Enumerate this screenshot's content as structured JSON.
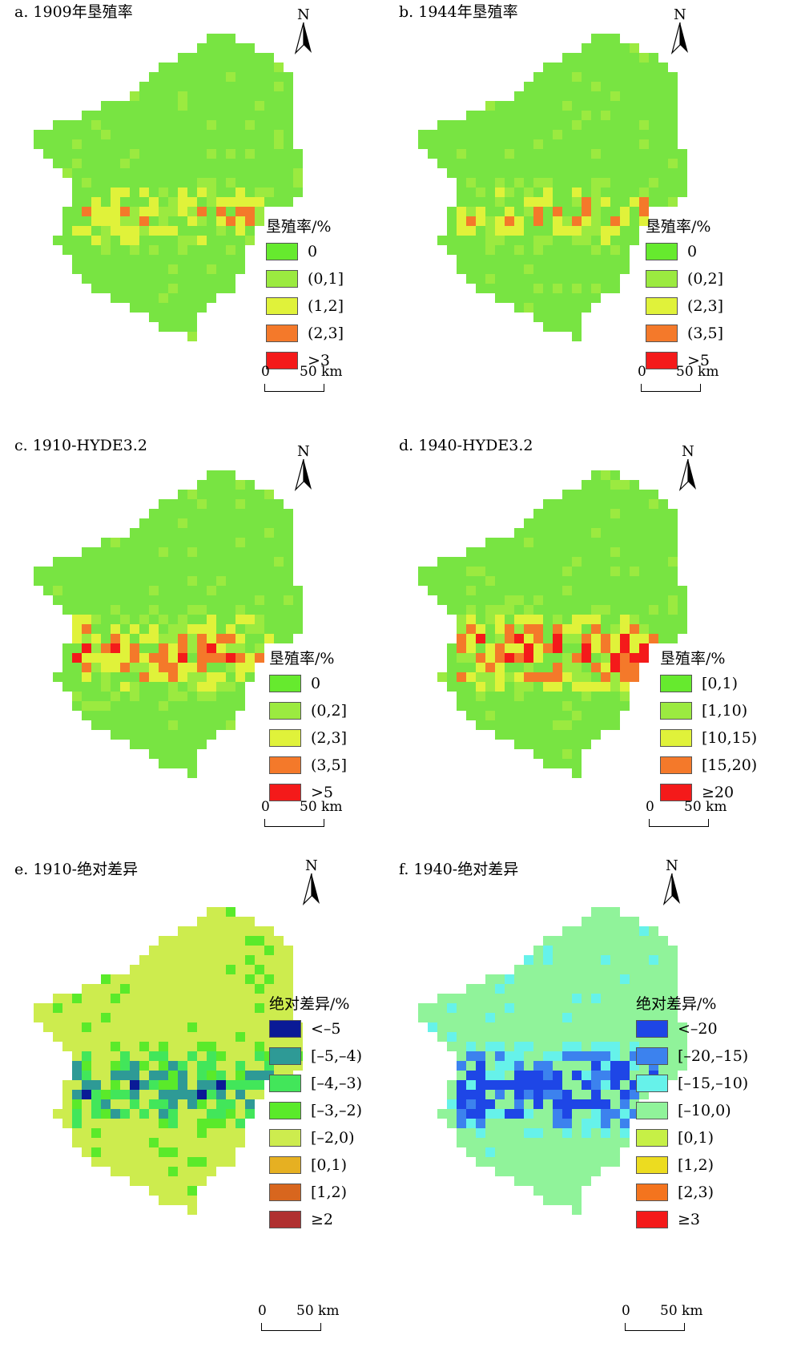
{
  "scale": {
    "zero": "0",
    "distance": "50 km"
  },
  "north_label": "N",
  "panels": [
    {
      "id": "a",
      "title": "a. 1909年垦殖率",
      "legend_title": "垦殖率/%",
      "fill": "#78e442",
      "classes": [
        {
          "label": "0",
          "color": "#66ea2e"
        },
        {
          "label": "(0,1]",
          "color": "#9bea40"
        },
        {
          "label": "(1,2]",
          "color": "#e0f23a"
        },
        {
          "label": "(2,3]",
          "color": "#f4792a"
        },
        {
          "label": ">3",
          "color": "#f41a1a"
        }
      ],
      "hot": {
        "level": 1,
        "colors": [
          "#9bea40",
          "#e0f23a",
          "#f4792a",
          "#f41a1a"
        ]
      }
    },
    {
      "id": "b",
      "title": "b. 1944年垦殖率",
      "legend_title": "垦殖率/%",
      "fill": "#78e442",
      "classes": [
        {
          "label": "0",
          "color": "#66ea2e"
        },
        {
          "label": "(0,2]",
          "color": "#9bea40"
        },
        {
          "label": "(2,3]",
          "color": "#e0f23a"
        },
        {
          "label": "(3,5]",
          "color": "#f4792a"
        },
        {
          "label": ">5",
          "color": "#f41a1a"
        }
      ],
      "hot": {
        "level": 1,
        "colors": [
          "#9bea40",
          "#e0f23a",
          "#f4792a",
          "#f41a1a"
        ]
      }
    },
    {
      "id": "c",
      "title": "c. 1910-HYDE3.2",
      "legend_title": "垦殖率/%",
      "fill": "#78e442",
      "classes": [
        {
          "label": "0",
          "color": "#66ea2e"
        },
        {
          "label": "(0,2]",
          "color": "#9bea40"
        },
        {
          "label": "(2,3]",
          "color": "#e0f23a"
        },
        {
          "label": "(3,5]",
          "color": "#f4792a"
        },
        {
          "label": ">5",
          "color": "#f41a1a"
        }
      ],
      "hot": {
        "level": 2,
        "colors": [
          "#9bea40",
          "#e0f23a",
          "#f4792a",
          "#f41a1a"
        ]
      }
    },
    {
      "id": "d",
      "title": "d. 1940-HYDE3.2",
      "legend_title": "垦殖率/%",
      "fill": "#78e442",
      "classes": [
        {
          "label": "[0,1)",
          "color": "#66ea2e"
        },
        {
          "label": "[1,10)",
          "color": "#9bea40"
        },
        {
          "label": "[10,15)",
          "color": "#e0f23a"
        },
        {
          "label": "[15,20)",
          "color": "#f4792a"
        },
        {
          "label": "≥20",
          "color": "#f41a1a"
        }
      ],
      "hot": {
        "level": 3,
        "colors": [
          "#9bea40",
          "#e0f23a",
          "#f4792a",
          "#f41a1a"
        ]
      }
    },
    {
      "id": "e",
      "title": "e. 1910-绝对差异",
      "legend_title": "绝对差异/%",
      "fill": "#cdec4e",
      "classes": [
        {
          "label": "<–5",
          "color": "#0a1a96"
        },
        {
          "label": "[–5,–4)",
          "color": "#2e9a96"
        },
        {
          "label": "[–4,–3)",
          "color": "#42e65a"
        },
        {
          "label": "[–3,–2)",
          "color": "#5aea2a"
        },
        {
          "label": "[–2,0)",
          "color": "#cdec4e"
        },
        {
          "label": "[0,1)",
          "color": "#e6b022"
        },
        {
          "label": "[1,2)",
          "color": "#d8661e"
        },
        {
          "label": "≥2",
          "color": "#b03030"
        }
      ],
      "hot": {
        "level": 2,
        "colors": [
          "#5aea2a",
          "#42e65a",
          "#2e9a96",
          "#0a1a96"
        ]
      }
    },
    {
      "id": "f",
      "title": "f. 1940-绝对差异",
      "legend_title": "绝对差异/%",
      "fill": "#90f39a",
      "classes": [
        {
          "label": "<–20",
          "color": "#1e46e6"
        },
        {
          "label": "[–20,–15)",
          "color": "#3c82ee"
        },
        {
          "label": "[–15,–10)",
          "color": "#66f2ea"
        },
        {
          "label": "[–10,0)",
          "color": "#90f39a"
        },
        {
          "label": "[0,1)",
          "color": "#c6f046"
        },
        {
          "label": "[1,2)",
          "color": "#ecdc20"
        },
        {
          "label": "[2,3)",
          "color": "#f4741e"
        },
        {
          "label": "≥3",
          "color": "#f41a1a"
        }
      ],
      "hot": {
        "level": 3,
        "colors": [
          "#66f2ea",
          "#3c82ee",
          "#1e46e6",
          "#1e46e6"
        ]
      }
    }
  ]
}
